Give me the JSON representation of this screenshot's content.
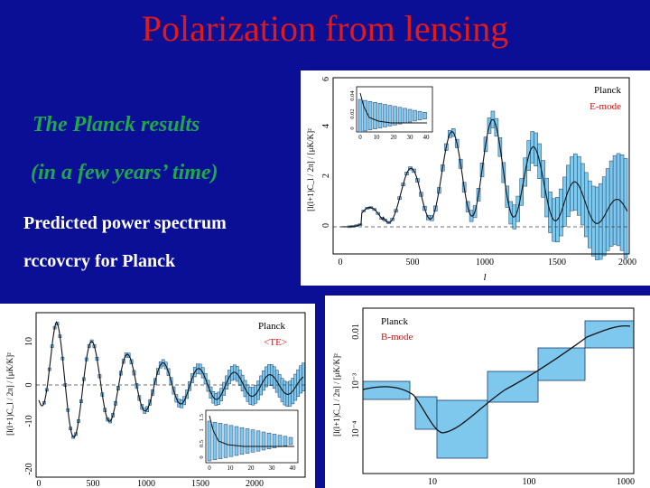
{
  "title": "Polarization from lensing",
  "subtitle_1": "The Planck results",
  "subtitle_2": "(in a few years’ time)",
  "prediction_1": "Predicted power spectrum",
  "prediction_2": "rccovcry for Planck",
  "colors": {
    "background": "#0a0f96",
    "title": "#e01a1a",
    "subtitle": "#1fa84a",
    "error_box": "#7ec8ee",
    "label_red": "#d01010"
  },
  "e_mode": {
    "experiment": "Planck",
    "label": "E-mode",
    "ylabel": "[l(l+1)C_l / 2π] / [μK/K]²",
    "xlabel": "l",
    "xticks": [
      "0",
      "500",
      "1000",
      "1500",
      "2000"
    ],
    "yticks": [
      "0",
      "2",
      "4",
      "6"
    ],
    "inset_xticks": [
      "0",
      "10",
      "20",
      "30",
      "40"
    ],
    "inset_yticks": [
      "0",
      "0.02",
      "0.04"
    ]
  },
  "te": {
    "experiment": "Planck",
    "label": "<TE>",
    "ylabel": "[l(l+1)C_l / 2π] / [μK/K]²",
    "xticks": [
      "0",
      "500",
      "1000",
      "1500",
      "2000"
    ],
    "yticks": [
      "-20",
      "-10",
      "0",
      "10"
    ],
    "inset_xticks": [
      "0",
      "10",
      "20",
      "30",
      "40"
    ],
    "inset_yticks": [
      "0",
      "0.5",
      "1",
      "1.5"
    ]
  },
  "b_mode": {
    "experiment": "Planck",
    "label": "B-mode",
    "ylabel": "[l(l+1)C_l / 2π] / [μK/K]²",
    "xticks": [
      "10",
      "100",
      "1000"
    ],
    "yticks": [
      "10⁻⁴",
      "10⁻³",
      "0.01"
    ]
  }
}
